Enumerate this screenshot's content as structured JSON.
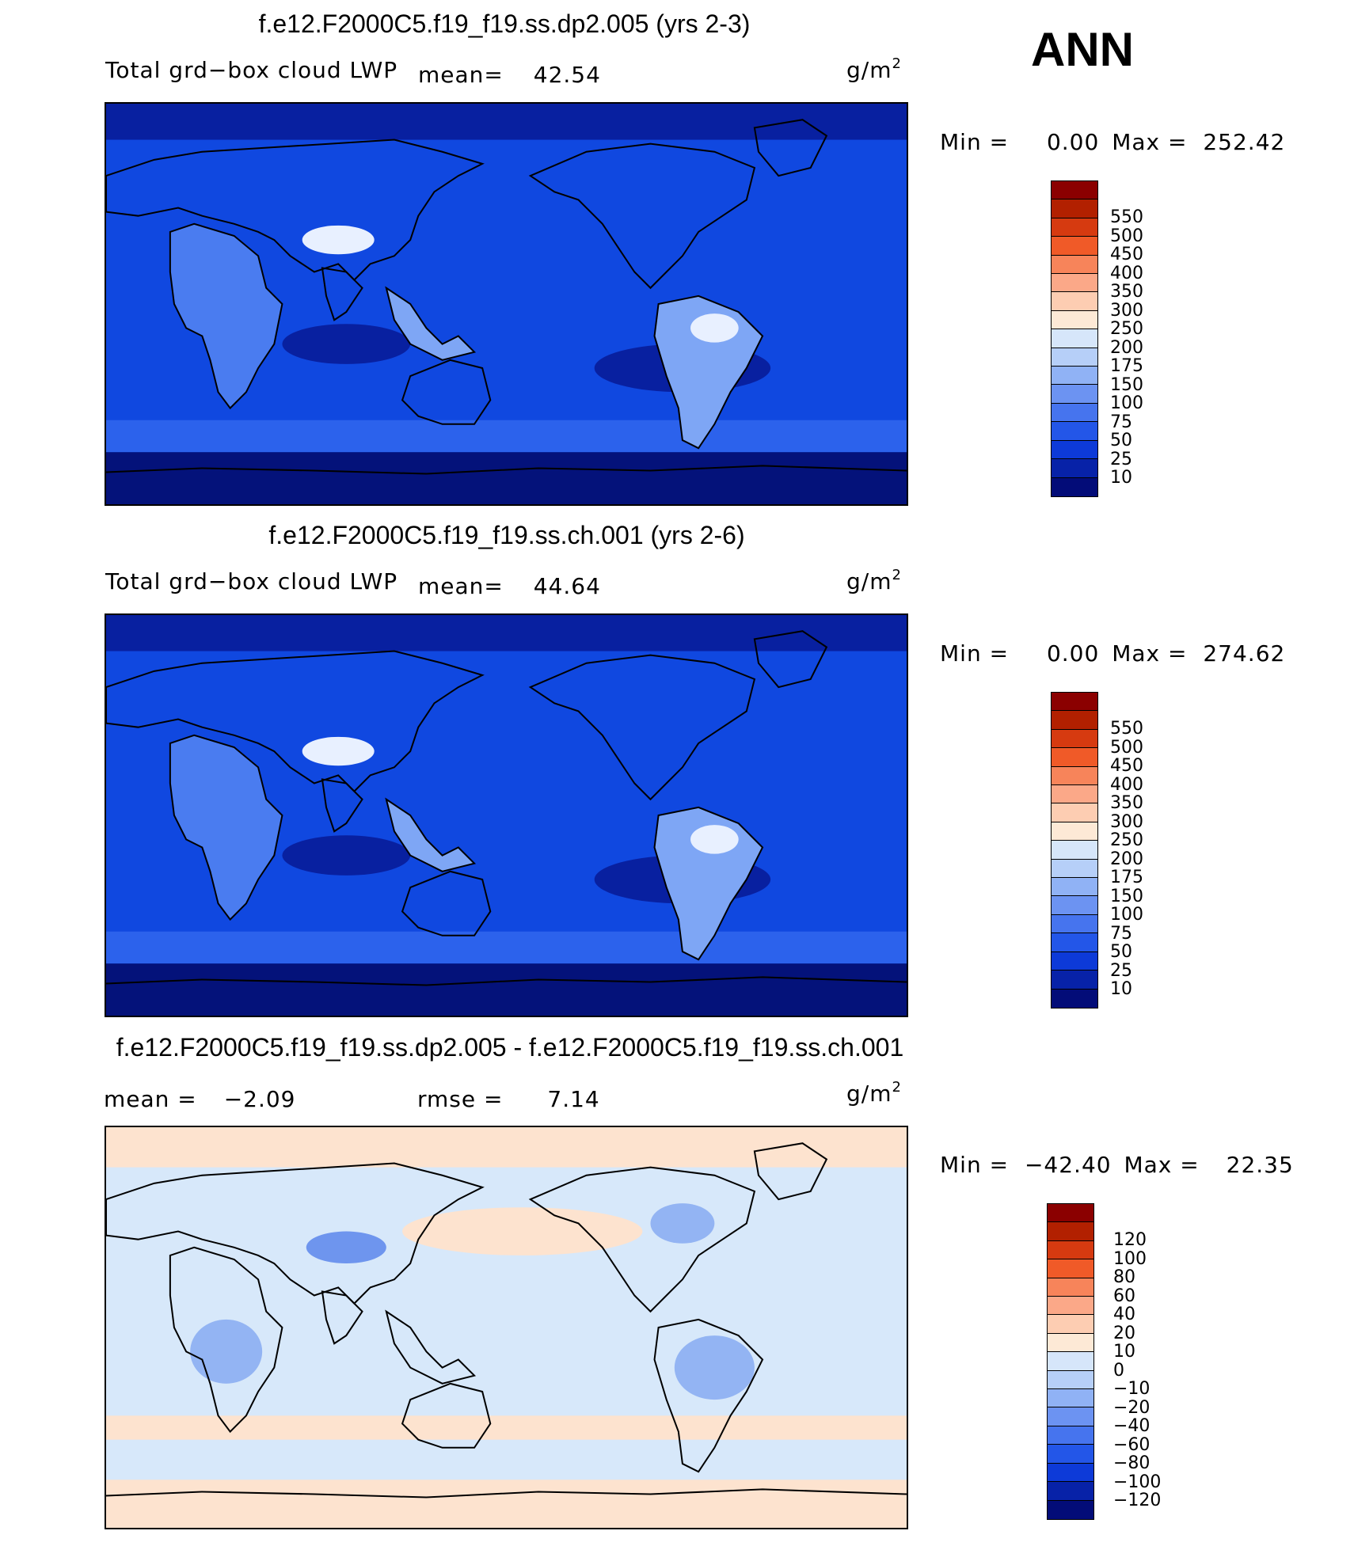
{
  "season": "ANN",
  "units": {
    "base": "g/m",
    "exp": "2"
  },
  "panels": [
    {
      "title": "f.e12.F2000C5.f19_f19.ss.dp2.005 (yrs 2-3)",
      "subtitle": "Total grd−box cloud LWP",
      "mean_label": "mean=",
      "mean_value": "42.54",
      "min_label": "Min =",
      "min_value": "0.00",
      "max_label": "Max =",
      "max_value": "252.42",
      "scheme": "abs"
    },
    {
      "title": "f.e12.F2000C5.f19_f19.ss.ch.001 (yrs 2-6)",
      "subtitle": "Total grd−box cloud LWP",
      "mean_label": "mean=",
      "mean_value": "44.64",
      "min_label": "Min =",
      "min_value": "0.00",
      "max_label": "Max =",
      "max_value": "274.62",
      "scheme": "abs"
    },
    {
      "title": "f.e12.F2000C5.f19_f19.ss.dp2.005 - f.e12.F2000C5.f19_f19.ss.ch.001",
      "mean_label": "mean =",
      "mean_value": "−2.09",
      "rmse_label": "rmse =",
      "rmse_value": "7.14",
      "min_label": "Min =",
      "min_value": "−42.40",
      "max_label": "Max =",
      "max_value": "22.35",
      "scheme": "diff"
    }
  ],
  "colorbars": {
    "abs": {
      "colors": [
        "#8b0000",
        "#b22000",
        "#d63a10",
        "#f05a28",
        "#f7845a",
        "#fba888",
        "#fdcdb2",
        "#fde9d6",
        "#d6e6fa",
        "#b6cff8",
        "#90b2f5",
        "#6c93f2",
        "#4674ee",
        "#2356e8",
        "#0d3ad8",
        "#0722a8",
        "#030c78"
      ],
      "labels": [
        "550",
        "500",
        "450",
        "400",
        "350",
        "300",
        "250",
        "200",
        "175",
        "150",
        "100",
        "75",
        "50",
        "25",
        "10"
      ]
    },
    "diff": {
      "colors": [
        "#8b0000",
        "#b22000",
        "#d63a10",
        "#f05a28",
        "#f7845a",
        "#fba888",
        "#fdcdb2",
        "#fde9d6",
        "#d6e6fa",
        "#b6cff8",
        "#90b2f5",
        "#6c93f2",
        "#4674ee",
        "#2356e8",
        "#0d3ad8",
        "#0722a8",
        "#030c78"
      ],
      "labels": [
        "120",
        "100",
        "80",
        "60",
        "40",
        "20",
        "10",
        "0",
        "−10",
        "−20",
        "−40",
        "−60",
        "−80",
        "−100",
        "−120"
      ]
    }
  },
  "map_colors": {
    "abs": {
      "ocean": "#1048e0",
      "deep": "#0820a0",
      "polar": "#04127a",
      "band": "#2c62ec",
      "land_wet": "#7ea6f5",
      "land_peak": "#e8f0ff",
      "land_mid": "#4a7cf0"
    },
    "diff": {
      "base": "#d7e8fa",
      "pos": "#fde3cf",
      "neg": "#93b4f3",
      "neg2": "#6e95ee"
    }
  }
}
